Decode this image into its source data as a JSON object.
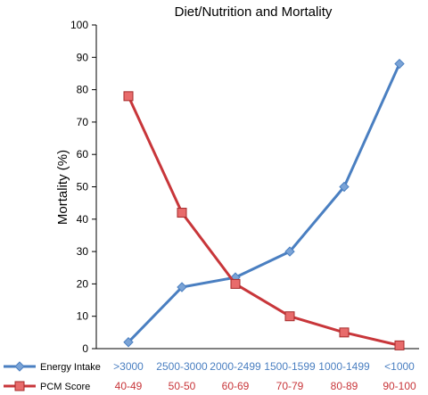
{
  "chart_data": {
    "type": "line",
    "title": "Diet/Nutrition and Mortality",
    "ylabel": "Mortality (%)",
    "ylim": [
      0,
      100
    ],
    "yticks": [
      "0",
      "10",
      "20",
      "30",
      "40",
      "50",
      "60",
      "70",
      "80",
      "90",
      "100"
    ],
    "grid": false,
    "legend_position": "bottom-left",
    "series": [
      {
        "name": "Energy Intake",
        "color": "#4a7fc1",
        "marker": "diamond",
        "categories": [
          ">3000",
          "2500-3000",
          "2000-2499",
          "1500-1599",
          "1000-1499",
          "<1000"
        ],
        "values": [
          2,
          19,
          22,
          30,
          50,
          88
        ]
      },
      {
        "name": "PCM Score",
        "color": "#c8363a",
        "marker": "square",
        "categories": [
          "40-49",
          "50-50",
          "60-69",
          "70-79",
          "80-89",
          "90-100"
        ],
        "values": [
          78,
          42,
          20,
          10,
          5,
          1
        ]
      }
    ]
  }
}
